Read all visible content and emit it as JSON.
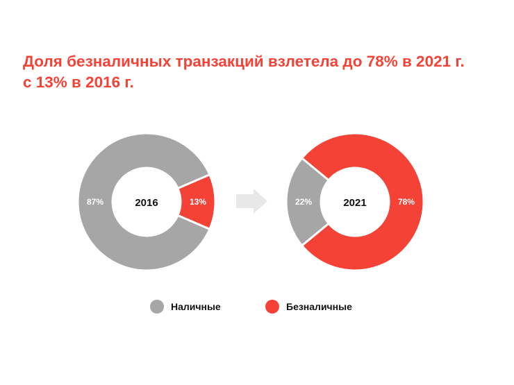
{
  "title_line1": "Доля безналичных транзакций взлетела до 78% в 2021 г.",
  "title_line2": "с 13% в 2016 г.",
  "colors": {
    "title": "#f44336",
    "cash": "#a6a6a6",
    "cashless": "#f44336",
    "arrow": "#e8e8e8"
  },
  "chart_data": [
    {
      "type": "pie",
      "donut": true,
      "center_label": "2016",
      "categories": [
        "Наличные",
        "Безналичные"
      ],
      "values": [
        87,
        13
      ],
      "labels": [
        "87%",
        "13%"
      ]
    },
    {
      "type": "pie",
      "donut": true,
      "center_label": "2021",
      "categories": [
        "Наличные",
        "Безналичные"
      ],
      "values": [
        22,
        78
      ],
      "labels": [
        "22%",
        "78%"
      ]
    }
  ],
  "legend": {
    "placement": "bottom",
    "items": [
      {
        "label": "Наличные",
        "color": "#a6a6a6"
      },
      {
        "label": "Безналичные",
        "color": "#f44336"
      }
    ]
  },
  "arrow_icon": "arrow-right-icon"
}
